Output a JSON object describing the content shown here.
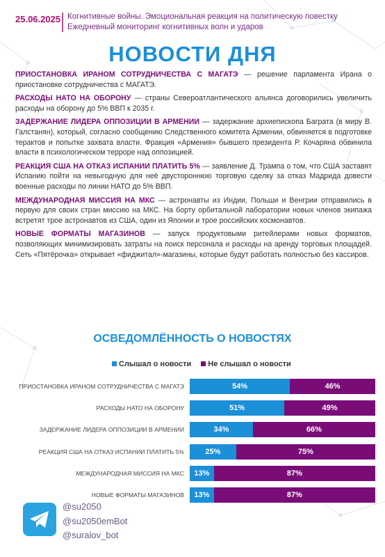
{
  "header": {
    "date": "25.06.2025",
    "line1": "Когнитивные войны. Эмоциональная реакция на политическую повестку",
    "line2": "Ежедневный мониторинг когнитивных волн и ударов"
  },
  "title": "НОВОСТИ ДНЯ",
  "news": [
    {
      "headline": "ПРИОСТАНОВКА ИРАНОМ СОТРУДНИЧЕСТВА С МАГАТЭ",
      "text": "— решение парламента Ирана о приостановке сотрудничества с МАГАТЭ."
    },
    {
      "headline": "РАСХОДЫ НАТО НА ОБОРОНУ",
      "text": "— страны Североатлантического альянса договорились увеличить расходы на оборону до 5% ВВП к 2035 г."
    },
    {
      "headline": "ЗАДЕРЖАНИЕ ЛИДЕРА ОППОЗИЦИИ В АРМЕНИИ",
      "text": "— задержание архиепископа Баграта (в миру В. Галстанян), который, согласно сообщению Следственного комитета Армении, обвиняется в подготовке терактов и попытке захвата власти. Фракция «Армения» бывшего президента Р. Кочаряна обвинила власти в психологическом терроре над оппозицией."
    },
    {
      "headline": "РЕАКЦИЯ США НА ОТКАЗ ИСПАНИИ ПЛАТИТЬ 5%",
      "text": "— заявление Д. Трампа о том, что США заставят Испанию пойти на невыгодную для неё двустороннюю торговую сделку за отказ Мадрида довести военные расходы по линии НАТО до 5% ВВП."
    },
    {
      "headline": "МЕЖДУНАРОДНАЯ МИССИЯ НА МКС",
      "text": "— астронавты из Индии, Польши и Венгрии отправились в первую для своих стран миссию на МКС. На борту орбитальной лаборатории новых членов экипажа встретят трое астронавтов из США, один из Японии и трое российских космонавтов."
    },
    {
      "headline": "НОВЫЕ ФОРМАТЫ МАГАЗИНОВ",
      "text": "— запуск продуктовыми ритейлерами новых форматов, позволяющих минимизировать затраты на поиск персонала и расходы на аренду торговых площадей. Сеть «Пятёрочка» открывает «фиджитал»-магазины, которые будут работать полностью без кассиров."
    }
  ],
  "chart_data": {
    "type": "bar",
    "orientation": "horizontal",
    "stacked": true,
    "title": "ОСВЕДОМЛЁННОСТЬ О НОВОСТЯХ",
    "categories": [
      "ПРИОСТАНОВКА ИРАНОМ СОТРУДНИЧЕСТВА С МАГАТЭ",
      "РАСХОДЫ НАТО НА ОБОРОНУ",
      "ЗАДЕРЖАНИЕ ЛИДЕРА ОППОЗИЦИИ В АРМЕНИИ",
      "РЕАКЦИЯ США НА ОТКАЗ ИСПАНИИ ПЛАТИТЬ 5%",
      "МЕЖДУНАРОДНАЯ МИССИЯ НА МКС",
      "НОВЫЕ ФОРМАТЫ МАГАЗИНОВ"
    ],
    "xlim": [
      0,
      100
    ],
    "series": [
      {
        "name": "Слышал о новости",
        "color": "#1b8fd8",
        "values": [
          54,
          51,
          34,
          25,
          13,
          13
        ],
        "value_labels": [
          "54%",
          "51%",
          "34%",
          "25%",
          "13%",
          "13%"
        ]
      },
      {
        "name": "Не слышал о новости",
        "color": "#7a0c78",
        "values": [
          46,
          49,
          66,
          75,
          87,
          87
        ],
        "value_labels": [
          "46%",
          "49%",
          "66%",
          "75%",
          "87%",
          "87%"
        ]
      }
    ]
  },
  "footer": {
    "handles": [
      "@su2050",
      "@su2050emBot",
      "@suralov_bot"
    ]
  }
}
